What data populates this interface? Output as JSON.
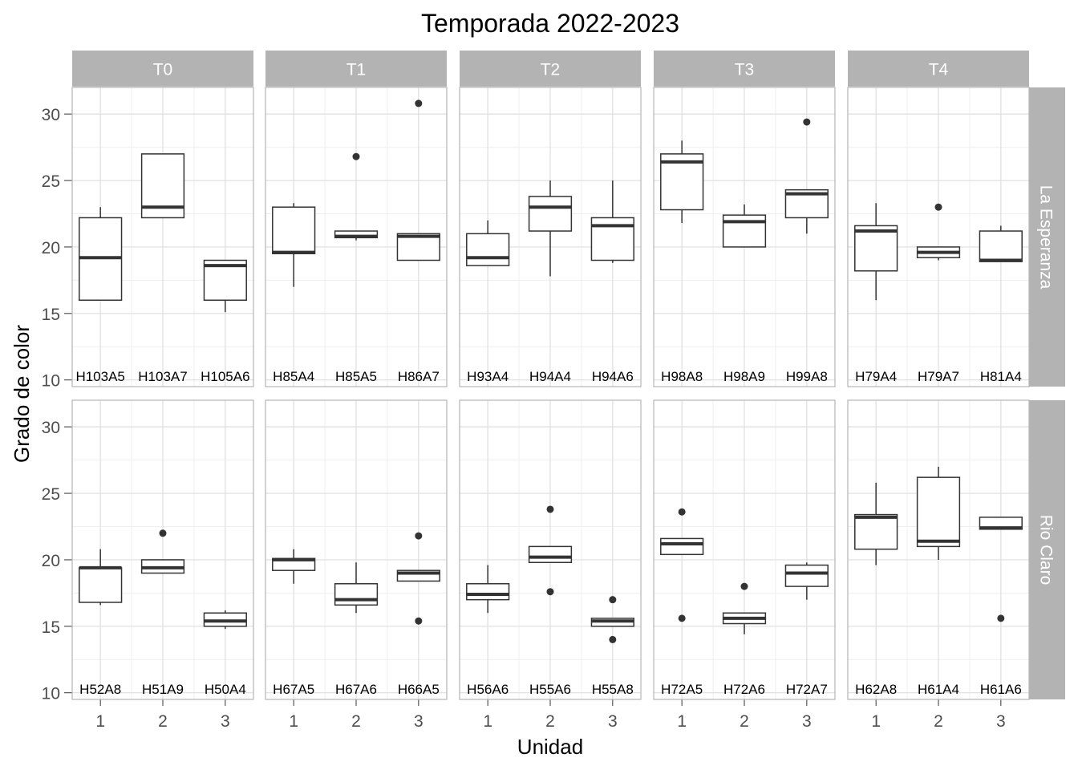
{
  "chart_data": {
    "type": "boxplot",
    "title": "Temporada 2022-2023",
    "xlabel": "Unidad",
    "ylabel": "Grado de color",
    "x_ticks": [
      "1",
      "2",
      "3"
    ],
    "y_ticks": [
      "10",
      "15",
      "20",
      "25",
      "30"
    ],
    "ylim": [
      9.5,
      32
    ],
    "grid": true,
    "col_facets": [
      "T0",
      "T1",
      "T2",
      "T3",
      "T4"
    ],
    "row_facets": [
      "La Esperanza",
      "Rio Claro"
    ],
    "panels": [
      {
        "row": "La Esperanza",
        "col": "T0",
        "boxes": [
          {
            "unit": 1,
            "label": "H103A5",
            "min": 16.0,
            "q1": 16.0,
            "median": 19.2,
            "q3": 22.2,
            "max": 23.0,
            "outliers": []
          },
          {
            "unit": 2,
            "label": "H103A7",
            "min": 22.2,
            "q1": 22.2,
            "median": 23.0,
            "q3": 27.0,
            "max": 27.0,
            "outliers": []
          },
          {
            "unit": 3,
            "label": "H105A6",
            "min": 15.1,
            "q1": 16.0,
            "median": 18.6,
            "q3": 19.0,
            "max": 19.0,
            "outliers": []
          }
        ]
      },
      {
        "row": "La Esperanza",
        "col": "T1",
        "boxes": [
          {
            "unit": 1,
            "label": "H85A4",
            "min": 17.0,
            "q1": 19.5,
            "median": 19.6,
            "q3": 23.0,
            "max": 23.3,
            "outliers": []
          },
          {
            "unit": 2,
            "label": "H85A5",
            "min": 20.5,
            "q1": 20.7,
            "median": 20.8,
            "q3": 21.2,
            "max": 21.2,
            "outliers": [
              26.8
            ]
          },
          {
            "unit": 3,
            "label": "H86A7",
            "min": 19.0,
            "q1": 19.0,
            "median": 20.8,
            "q3": 21.0,
            "max": 21.0,
            "outliers": [
              30.8
            ]
          }
        ]
      },
      {
        "row": "La Esperanza",
        "col": "T2",
        "boxes": [
          {
            "unit": 1,
            "label": "H93A4",
            "min": 18.6,
            "q1": 18.6,
            "median": 19.2,
            "q3": 21.0,
            "max": 22.0,
            "outliers": []
          },
          {
            "unit": 2,
            "label": "H94A4",
            "min": 17.8,
            "q1": 21.2,
            "median": 23.0,
            "q3": 23.8,
            "max": 25.0,
            "outliers": []
          },
          {
            "unit": 3,
            "label": "H94A6",
            "min": 18.8,
            "q1": 19.0,
            "median": 21.6,
            "q3": 22.2,
            "max": 25.0,
            "outliers": []
          }
        ]
      },
      {
        "row": "La Esperanza",
        "col": "T3",
        "boxes": [
          {
            "unit": 1,
            "label": "H98A8",
            "min": 21.8,
            "q1": 22.8,
            "median": 26.4,
            "q3": 27.0,
            "max": 28.0,
            "outliers": []
          },
          {
            "unit": 2,
            "label": "H98A9",
            "min": 20.0,
            "q1": 20.0,
            "median": 21.9,
            "q3": 22.4,
            "max": 23.2,
            "outliers": []
          },
          {
            "unit": 3,
            "label": "H99A8",
            "min": 21.0,
            "q1": 22.2,
            "median": 24.0,
            "q3": 24.3,
            "max": 24.3,
            "outliers": [
              29.4
            ]
          }
        ]
      },
      {
        "row": "La Esperanza",
        "col": "T4",
        "boxes": [
          {
            "unit": 1,
            "label": "H79A4",
            "min": 16.0,
            "q1": 18.2,
            "median": 21.2,
            "q3": 21.6,
            "max": 23.3,
            "outliers": []
          },
          {
            "unit": 2,
            "label": "H79A7",
            "min": 19.0,
            "q1": 19.2,
            "median": 19.6,
            "q3": 20.0,
            "max": 20.0,
            "outliers": [
              23.0
            ]
          },
          {
            "unit": 3,
            "label": "H81A4",
            "min": 18.9,
            "q1": 18.9,
            "median": 19.0,
            "q3": 21.2,
            "max": 21.6,
            "outliers": []
          }
        ]
      },
      {
        "row": "Rio Claro",
        "col": "T0",
        "boxes": [
          {
            "unit": 1,
            "label": "H52A8",
            "min": 16.6,
            "q1": 16.8,
            "median": 19.4,
            "q3": 19.4,
            "max": 20.8,
            "outliers": []
          },
          {
            "unit": 2,
            "label": "H51A9",
            "min": 19.0,
            "q1": 19.0,
            "median": 19.4,
            "q3": 20.0,
            "max": 20.0,
            "outliers": [
              22.0
            ]
          },
          {
            "unit": 3,
            "label": "H50A4",
            "min": 14.8,
            "q1": 15.0,
            "median": 15.4,
            "q3": 16.0,
            "max": 16.2,
            "outliers": []
          }
        ]
      },
      {
        "row": "Rio Claro",
        "col": "T1",
        "boxes": [
          {
            "unit": 1,
            "label": "H67A5",
            "min": 18.2,
            "q1": 19.2,
            "median": 20.0,
            "q3": 20.1,
            "max": 20.8,
            "outliers": []
          },
          {
            "unit": 2,
            "label": "H67A6",
            "min": 16.0,
            "q1": 16.6,
            "median": 17.0,
            "q3": 18.2,
            "max": 19.8,
            "outliers": []
          },
          {
            "unit": 3,
            "label": "H66A5",
            "min": 18.4,
            "q1": 18.4,
            "median": 19.0,
            "q3": 19.2,
            "max": 19.2,
            "outliers": [
              21.8,
              15.4
            ]
          }
        ]
      },
      {
        "row": "Rio Claro",
        "col": "T2",
        "boxes": [
          {
            "unit": 1,
            "label": "H56A6",
            "min": 16.0,
            "q1": 17.0,
            "median": 17.4,
            "q3": 18.2,
            "max": 19.6,
            "outliers": []
          },
          {
            "unit": 2,
            "label": "H55A6",
            "min": 19.8,
            "q1": 19.8,
            "median": 20.2,
            "q3": 21.0,
            "max": 21.0,
            "outliers": [
              23.8,
              17.6
            ]
          },
          {
            "unit": 3,
            "label": "H55A8",
            "min": 15.0,
            "q1": 15.0,
            "median": 15.4,
            "q3": 15.6,
            "max": 15.6,
            "outliers": [
              17.0,
              14.0
            ]
          }
        ]
      },
      {
        "row": "Rio Claro",
        "col": "T3",
        "boxes": [
          {
            "unit": 1,
            "label": "H72A5",
            "min": 20.4,
            "q1": 20.4,
            "median": 21.2,
            "q3": 21.6,
            "max": 21.6,
            "outliers": [
              23.6,
              15.6
            ]
          },
          {
            "unit": 2,
            "label": "H72A6",
            "min": 14.4,
            "q1": 15.2,
            "median": 15.6,
            "q3": 16.0,
            "max": 16.0,
            "outliers": [
              18.0
            ]
          },
          {
            "unit": 3,
            "label": "H72A7",
            "min": 17.0,
            "q1": 18.0,
            "median": 19.0,
            "q3": 19.6,
            "max": 19.8,
            "outliers": []
          }
        ]
      },
      {
        "row": "Rio Claro",
        "col": "T4",
        "boxes": [
          {
            "unit": 1,
            "label": "H62A8",
            "min": 19.6,
            "q1": 20.8,
            "median": 23.2,
            "q3": 23.4,
            "max": 25.8,
            "outliers": []
          },
          {
            "unit": 2,
            "label": "H61A4",
            "min": 20.0,
            "q1": 21.0,
            "median": 21.4,
            "q3": 26.2,
            "max": 27.0,
            "outliers": []
          },
          {
            "unit": 3,
            "label": "H61A6",
            "min": 22.3,
            "q1": 22.3,
            "median": 22.4,
            "q3": 23.2,
            "max": 23.2,
            "outliers": [
              15.6
            ]
          }
        ]
      }
    ],
    "colors": {
      "strip_fill": "#b3b3b3",
      "strip_text": "#ffffff",
      "panel_border": "#b3b3b3",
      "grid_major": "#dedede",
      "grid_minor": "#efefef",
      "box_line": "#333333",
      "text": "#000000",
      "tick_text": "#4d4d4d"
    }
  }
}
